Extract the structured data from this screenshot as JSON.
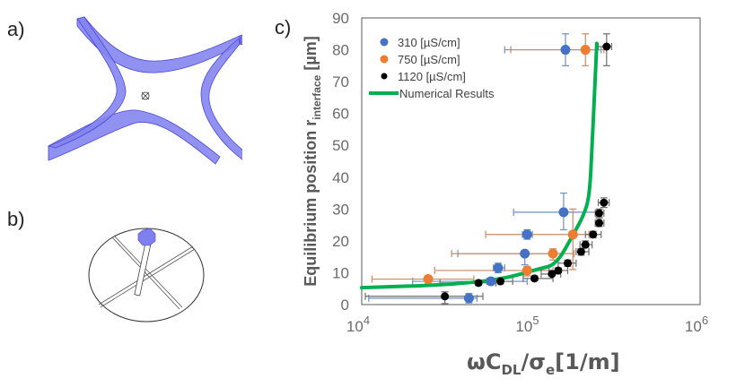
{
  "panels": {
    "a_label": "a)",
    "b_label": "b)",
    "c_label": "c)"
  },
  "colors": {
    "series_310": "#4472C4",
    "series_750": "#ED7D31",
    "series_1120": "#000000",
    "numerical": "#00B050",
    "geometry_fill": "#7F7FEF"
  },
  "chart_data": {
    "type": "scatter",
    "title": "",
    "xlabel": "ωC_DL/σ_e[1/m]",
    "ylabel": "Equilibrium position r_interface [µm]",
    "xscale": "log",
    "xlim": [
      10000,
      1000000
    ],
    "ylim": [
      0,
      90
    ],
    "xticks": [
      {
        "v": 10000,
        "base": "10",
        "exp": "4"
      },
      {
        "v": 100000,
        "base": "10",
        "exp": "5"
      },
      {
        "v": 1000000,
        "base": "10",
        "exp": "6"
      }
    ],
    "yticks": [
      0,
      10,
      20,
      30,
      40,
      50,
      60,
      70,
      80,
      90
    ],
    "grid": false,
    "legend_position": "top-left",
    "series": [
      {
        "name": "310 [µS/cm]",
        "color": "#4472C4",
        "points": [
          {
            "x": 160000,
            "y": 80,
            "xlo": 70000,
            "xhi": 260000,
            "ylo": 75,
            "yhi": 85
          },
          {
            "x": 156000,
            "y": 29,
            "xlo": 79000,
            "xhi": 260000,
            "ylo": 23.5,
            "yhi": 35
          },
          {
            "x": 95000,
            "y": 22,
            "xlo": 89000,
            "xhi": 102000,
            "ylo": 20.5,
            "yhi": 23.5
          },
          {
            "x": 92000,
            "y": 16,
            "xlo": 37000,
            "xhi": 140000,
            "ylo": 12.5,
            "yhi": 16.5
          },
          {
            "x": 64000,
            "y": 11.5,
            "xlo": 60000,
            "xhi": 70000,
            "ylo": 10,
            "yhi": 13
          },
          {
            "x": 58000,
            "y": 7.3,
            "xlo": 20000,
            "xhi": 95000,
            "ylo": 6.5,
            "yhi": 8
          },
          {
            "x": 43000,
            "y": 2,
            "xlo": 11000,
            "xhi": 48000,
            "ylo": 0.5,
            "yhi": 3.5
          }
        ]
      },
      {
        "name": "750 [µS/cm]",
        "color": "#ED7D31",
        "points": [
          {
            "x": 210000,
            "y": 80,
            "xlo": 76000,
            "xhi": 270000,
            "ylo": 75,
            "yhi": 85
          },
          {
            "x": 177000,
            "y": 22,
            "xlo": 54000,
            "xhi": 220000,
            "ylo": 11,
            "yhi": 30
          },
          {
            "x": 135000,
            "y": 16,
            "xlo": 34000,
            "xhi": 180000,
            "ylo": 14,
            "yhi": 17.5
          },
          {
            "x": 95000,
            "y": 10.7,
            "xlo": 27000,
            "xhi": 135000,
            "ylo": 9,
            "yhi": 12
          },
          {
            "x": 24700,
            "y": 8,
            "xlo": 11500,
            "xhi": 46000,
            "ylo": 6.5,
            "yhi": 9
          }
        ]
      },
      {
        "name": "1120 [µS/cm]",
        "color": "#000000",
        "points": [
          {
            "x": 280000,
            "y": 81,
            "xlo": 250000,
            "xhi": 300000,
            "ylo": 75,
            "yhi": 85
          },
          {
            "x": 270000,
            "y": 32,
            "xlo": 250000,
            "xhi": 290000,
            "ylo": 30.5,
            "yhi": 33.5
          },
          {
            "x": 253000,
            "y": 28.7,
            "xlo": 240000,
            "xhi": 270000,
            "ylo": 27.5,
            "yhi": 30
          },
          {
            "x": 253000,
            "y": 25.6,
            "xlo": 240000,
            "xhi": 270000,
            "ylo": 24.5,
            "yhi": 27
          },
          {
            "x": 233000,
            "y": 22,
            "xlo": 210000,
            "xhi": 260000,
            "ylo": 21,
            "yhi": 23
          },
          {
            "x": 210000,
            "y": 18.8,
            "xlo": 195000,
            "xhi": 230000,
            "ylo": 18,
            "yhi": 20
          },
          {
            "x": 198000,
            "y": 16.6,
            "xlo": 185000,
            "xhi": 220000,
            "ylo": 15.5,
            "yhi": 17.5
          },
          {
            "x": 165000,
            "y": 13,
            "xlo": 145000,
            "xhi": 185000,
            "ylo": 12,
            "yhi": 14
          },
          {
            "x": 145000,
            "y": 10.7,
            "xlo": 128000,
            "xhi": 165000,
            "ylo": 10,
            "yhi": 11.5
          },
          {
            "x": 133000,
            "y": 9.6,
            "xlo": 115000,
            "xhi": 150000,
            "ylo": 9,
            "yhi": 10.5
          },
          {
            "x": 105000,
            "y": 8.2,
            "xlo": 90000,
            "xhi": 135000,
            "ylo": 7.5,
            "yhi": 9
          },
          {
            "x": 66000,
            "y": 7.3,
            "xlo": 55000,
            "xhi": 78000,
            "ylo": 6.5,
            "yhi": 8
          },
          {
            "x": 49000,
            "y": 6.8,
            "xlo": 29000,
            "xhi": 62000,
            "ylo": 6,
            "yhi": 7.5
          },
          {
            "x": 31000,
            "y": 2.6,
            "xlo": 10500,
            "xhi": 52000,
            "ylo": 0.3,
            "yhi": 4
          }
        ]
      }
    ],
    "line": {
      "name": "Numerical Results",
      "color": "#00B050",
      "points": [
        {
          "x": 10000,
          "y": 5.3
        },
        {
          "x": 32000,
          "y": 6.2
        },
        {
          "x": 67000,
          "y": 7.9
        },
        {
          "x": 111000,
          "y": 11.2
        },
        {
          "x": 141000,
          "y": 12.5
        },
        {
          "x": 178000,
          "y": 22
        },
        {
          "x": 205000,
          "y": 28
        },
        {
          "x": 222000,
          "y": 34
        },
        {
          "x": 230000,
          "y": 50
        },
        {
          "x": 238000,
          "y": 67
        },
        {
          "x": 245000,
          "y": 82
        }
      ]
    },
    "legend": [
      "310 [µS/cm]",
      "750 [µS/cm]",
      "1120 [µS/cm]",
      "Numerical Results"
    ]
  }
}
